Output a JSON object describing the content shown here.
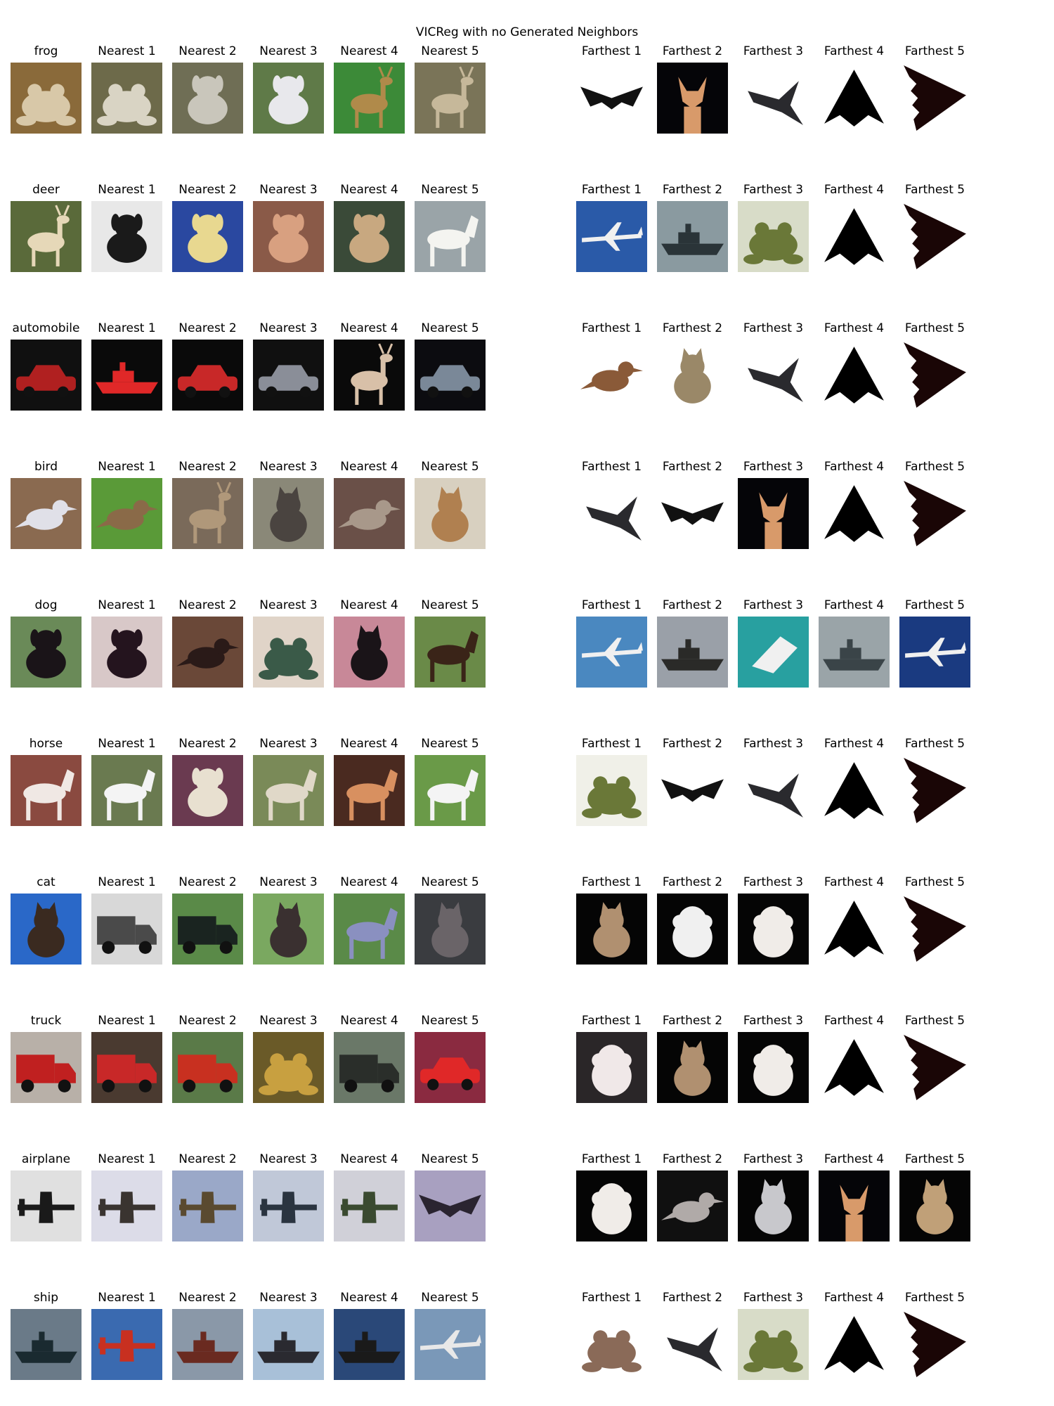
{
  "figure": {
    "title": "VICReg with no Generated Neighbors",
    "rows": [
      {
        "query": "frog",
        "nearest": [
          "Nearest 1",
          "Nearest 2",
          "Nearest 3",
          "Nearest 4",
          "Nearest 5"
        ],
        "farthest": [
          "Farthest 1",
          "Farthest 2",
          "Farthest 3",
          "Farthest 4",
          "Farthest 5"
        ],
        "query_image": {
          "icon": "frog",
          "bg": "#8a6a3a",
          "fg": "#d8c8a8"
        },
        "nearest_images": [
          {
            "icon": "frog",
            "bg": "#6d6a4a",
            "fg": "#d9d4c4"
          },
          {
            "icon": "dog",
            "bg": "#6f6e55",
            "fg": "#c9c6bb"
          },
          {
            "icon": "dog",
            "bg": "#5f7a48",
            "fg": "#e8e8ec"
          },
          {
            "icon": "deer",
            "bg": "#3c8a38",
            "fg": "#b08a4a"
          },
          {
            "icon": "deer",
            "bg": "#7a7458",
            "fg": "#c6b89a"
          }
        ],
        "farthest_images": [
          {
            "icon": "bat-plane",
            "bg": "#ffffff",
            "fg": "#111111"
          },
          {
            "icon": "chihuahua",
            "bg": "#050508",
            "fg": "#d89a6a"
          },
          {
            "icon": "jet",
            "bg": "#ffffff",
            "fg": "#2a2a2e"
          },
          {
            "icon": "triangle",
            "bg": "#ffffff",
            "fg": "#000000"
          },
          {
            "icon": "stealth",
            "bg": "#ffffff",
            "fg": "#1a0606"
          }
        ]
      },
      {
        "query": "deer",
        "nearest": [
          "Nearest 1",
          "Nearest 2",
          "Nearest 3",
          "Nearest 4",
          "Nearest 5"
        ],
        "farthest": [
          "Farthest 1",
          "Farthest 2",
          "Farthest 3",
          "Farthest 4",
          "Farthest 5"
        ],
        "query_image": {
          "icon": "deer",
          "bg": "#5a6a3a",
          "fg": "#e6d8b8"
        },
        "nearest_images": [
          {
            "icon": "dog",
            "bg": "#e8e8e8",
            "fg": "#1a1a1a"
          },
          {
            "icon": "dog",
            "bg": "#2a48a0",
            "fg": "#e8d890"
          },
          {
            "icon": "dog",
            "bg": "#8a5a48",
            "fg": "#d8a080"
          },
          {
            "icon": "dog",
            "bg": "#3a4a38",
            "fg": "#c8a880"
          },
          {
            "icon": "horse",
            "bg": "#9aa4a8",
            "fg": "#f4f4f0"
          }
        ],
        "farthest_images": [
          {
            "icon": "airliner",
            "bg": "#2a5aa8",
            "fg": "#f0f0f0"
          },
          {
            "icon": "ship",
            "bg": "#8a9aa0",
            "fg": "#2a3438"
          },
          {
            "icon": "frog",
            "bg": "#d8dcc8",
            "fg": "#6a7838"
          },
          {
            "icon": "triangle",
            "bg": "#ffffff",
            "fg": "#000000"
          },
          {
            "icon": "stealth",
            "bg": "#ffffff",
            "fg": "#1a0606"
          }
        ]
      },
      {
        "query": "automobile",
        "nearest": [
          "Nearest 1",
          "Nearest 2",
          "Nearest 3",
          "Nearest 4",
          "Nearest 5"
        ],
        "farthest": [
          "Farthest 1",
          "Farthest 2",
          "Farthest 3",
          "Farthest 4",
          "Farthest 5"
        ],
        "query_image": {
          "icon": "car",
          "bg": "#101010",
          "fg": "#b02020"
        },
        "nearest_images": [
          {
            "icon": "ship",
            "bg": "#0a0a0a",
            "fg": "#e02828"
          },
          {
            "icon": "car",
            "bg": "#0a0a0a",
            "fg": "#c82828"
          },
          {
            "icon": "car",
            "bg": "#101010",
            "fg": "#8a8e98"
          },
          {
            "icon": "deer",
            "bg": "#0a0a0a",
            "fg": "#d8c0a8"
          },
          {
            "icon": "car",
            "bg": "#0c0c10",
            "fg": "#7a8898"
          }
        ],
        "farthest_images": [
          {
            "icon": "bird",
            "bg": "#ffffff",
            "fg": "#8a5a38"
          },
          {
            "icon": "cat",
            "bg": "#ffffff",
            "fg": "#9a8868"
          },
          {
            "icon": "jet",
            "bg": "#ffffff",
            "fg": "#2a2a2e"
          },
          {
            "icon": "triangle",
            "bg": "#ffffff",
            "fg": "#000000"
          },
          {
            "icon": "stealth",
            "bg": "#ffffff",
            "fg": "#1a0606"
          }
        ]
      },
      {
        "query": "bird",
        "nearest": [
          "Nearest 1",
          "Nearest 2",
          "Nearest 3",
          "Nearest 4",
          "Nearest 5"
        ],
        "farthest": [
          "Farthest 1",
          "Farthest 2",
          "Farthest 3",
          "Farthest 4",
          "Farthest 5"
        ],
        "query_image": {
          "icon": "bird",
          "bg": "#8a6a50",
          "fg": "#e0e0e8"
        },
        "nearest_images": [
          {
            "icon": "bird",
            "bg": "#5a9a38",
            "fg": "#8a6a48"
          },
          {
            "icon": "deer",
            "bg": "#7a6a5a",
            "fg": "#b0987a"
          },
          {
            "icon": "cat",
            "bg": "#8a8878",
            "fg": "#4a4440"
          },
          {
            "icon": "bird",
            "bg": "#6a5048",
            "fg": "#a8988a"
          },
          {
            "icon": "cat",
            "bg": "#d8d0c0",
            "fg": "#b08050"
          }
        ],
        "farthest_images": [
          {
            "icon": "jet",
            "bg": "#ffffff",
            "fg": "#2a2a2e"
          },
          {
            "icon": "bat-plane",
            "bg": "#ffffff",
            "fg": "#111111"
          },
          {
            "icon": "chihuahua",
            "bg": "#050508",
            "fg": "#d89a6a"
          },
          {
            "icon": "triangle",
            "bg": "#ffffff",
            "fg": "#000000"
          },
          {
            "icon": "stealth",
            "bg": "#ffffff",
            "fg": "#1a0606"
          }
        ]
      },
      {
        "query": "dog",
        "nearest": [
          "Nearest 1",
          "Nearest 2",
          "Nearest 3",
          "Nearest 4",
          "Nearest 5"
        ],
        "farthest": [
          "Farthest 1",
          "Farthest 2",
          "Farthest 3",
          "Farthest 4",
          "Farthest 5"
        ],
        "query_image": {
          "icon": "dog",
          "bg": "#6a8a58",
          "fg": "#1a1418"
        },
        "nearest_images": [
          {
            "icon": "dog",
            "bg": "#d8c8c8",
            "fg": "#24141e"
          },
          {
            "icon": "bird",
            "bg": "#6a4838",
            "fg": "#2a1a18"
          },
          {
            "icon": "frog",
            "bg": "#e0d4c8",
            "fg": "#3a5a48"
          },
          {
            "icon": "cat",
            "bg": "#c88898",
            "fg": "#1a1418"
          },
          {
            "icon": "horse",
            "bg": "#6a8a48",
            "fg": "#3a2418"
          }
        ],
        "farthest_images": [
          {
            "icon": "airliner",
            "bg": "#4a88c0",
            "fg": "#f0f0f0"
          },
          {
            "icon": "ship",
            "bg": "#9aa0a8",
            "fg": "#2a2a28"
          },
          {
            "icon": "boat",
            "bg": "#28a0a0",
            "fg": "#f0f0f0"
          },
          {
            "icon": "ship",
            "bg": "#9aa4a8",
            "fg": "#3a4448"
          },
          {
            "icon": "airliner",
            "bg": "#1a3a80",
            "fg": "#f0f0f0"
          }
        ]
      },
      {
        "query": "horse",
        "nearest": [
          "Nearest 1",
          "Nearest 2",
          "Nearest 3",
          "Nearest 4",
          "Nearest 5"
        ],
        "farthest": [
          "Farthest 1",
          "Farthest 2",
          "Farthest 3",
          "Farthest 4",
          "Farthest 5"
        ],
        "query_image": {
          "icon": "horse",
          "bg": "#8a4a40",
          "fg": "#f0e8e4"
        },
        "nearest_images": [
          {
            "icon": "horse",
            "bg": "#6a7a50",
            "fg": "#f4f4f4"
          },
          {
            "icon": "dog",
            "bg": "#6a3a50",
            "fg": "#e8e0d0"
          },
          {
            "icon": "horse",
            "bg": "#7a8a58",
            "fg": "#e0d8c8"
          },
          {
            "icon": "horse",
            "bg": "#4a2a20",
            "fg": "#d89060"
          },
          {
            "icon": "horse",
            "bg": "#6a9a48",
            "fg": "#f4f4f4"
          }
        ],
        "farthest_images": [
          {
            "icon": "frog",
            "bg": "#f0f0e8",
            "fg": "#6a7838"
          },
          {
            "icon": "bat-plane",
            "bg": "#ffffff",
            "fg": "#111111"
          },
          {
            "icon": "jet",
            "bg": "#ffffff",
            "fg": "#2a2a2e"
          },
          {
            "icon": "triangle",
            "bg": "#ffffff",
            "fg": "#000000"
          },
          {
            "icon": "stealth",
            "bg": "#ffffff",
            "fg": "#1a0606"
          }
        ]
      },
      {
        "query": "cat",
        "nearest": [
          "Nearest 1",
          "Nearest 2",
          "Nearest 3",
          "Nearest 4",
          "Nearest 5"
        ],
        "farthest": [
          "Farthest 1",
          "Farthest 2",
          "Farthest 3",
          "Farthest 4",
          "Farthest 5"
        ],
        "query_image": {
          "icon": "cat",
          "bg": "#2a68c8",
          "fg": "#3a2a20"
        },
        "nearest_images": [
          {
            "icon": "truck",
            "bg": "#d8d8d8",
            "fg": "#4a4a4a"
          },
          {
            "icon": "truck",
            "bg": "#5a8a48",
            "fg": "#1a2420"
          },
          {
            "icon": "cat",
            "bg": "#7aa860",
            "fg": "#3a3030"
          },
          {
            "icon": "horse",
            "bg": "#5a8a48",
            "fg": "#8a90c0"
          },
          {
            "icon": "cat",
            "bg": "#3a3c40",
            "fg": "#6a6468"
          }
        ],
        "farthest_images": [
          {
            "icon": "cat",
            "bg": "#050505",
            "fg": "#b09070"
          },
          {
            "icon": "fluffy-dog",
            "bg": "#050505",
            "fg": "#f0f0f0"
          },
          {
            "icon": "fluffy-dog",
            "bg": "#050505",
            "fg": "#f0ece8"
          },
          {
            "icon": "triangle",
            "bg": "#ffffff",
            "fg": "#000000"
          },
          {
            "icon": "stealth",
            "bg": "#ffffff",
            "fg": "#1a0606"
          }
        ]
      },
      {
        "query": "truck",
        "nearest": [
          "Nearest 1",
          "Nearest 2",
          "Nearest 3",
          "Nearest 4",
          "Nearest 5"
        ],
        "farthest": [
          "Farthest 1",
          "Farthest 2",
          "Farthest 3",
          "Farthest 4",
          "Farthest 5"
        ],
        "query_image": {
          "icon": "truck",
          "bg": "#b8b0a8",
          "fg": "#c02020"
        },
        "nearest_images": [
          {
            "icon": "truck",
            "bg": "#4a3a30",
            "fg": "#c82828"
          },
          {
            "icon": "truck",
            "bg": "#5a7a48",
            "fg": "#c83020"
          },
          {
            "icon": "frog",
            "bg": "#6a5a28",
            "fg": "#c8a040"
          },
          {
            "icon": "truck",
            "bg": "#6a7868",
            "fg": "#2a2e2a"
          },
          {
            "icon": "car",
            "bg": "#8a2a40",
            "fg": "#e02828"
          }
        ],
        "farthest_images": [
          {
            "icon": "fluffy-dog",
            "bg": "#2a2628",
            "fg": "#f0e8e8"
          },
          {
            "icon": "cat",
            "bg": "#050505",
            "fg": "#b09070"
          },
          {
            "icon": "fluffy-dog",
            "bg": "#050505",
            "fg": "#f0ece8"
          },
          {
            "icon": "triangle",
            "bg": "#ffffff",
            "fg": "#000000"
          },
          {
            "icon": "stealth",
            "bg": "#ffffff",
            "fg": "#1a0606"
          }
        ]
      },
      {
        "query": "airplane",
        "nearest": [
          "Nearest 1",
          "Nearest 2",
          "Nearest 3",
          "Nearest 4",
          "Nearest 5"
        ],
        "farthest": [
          "Farthest 1",
          "Farthest 2",
          "Farthest 3",
          "Farthest 4",
          "Farthest 5"
        ],
        "query_image": {
          "icon": "prop-plane",
          "bg": "#e0e0e0",
          "fg": "#1a1a1a"
        },
        "nearest_images": [
          {
            "icon": "prop-plane",
            "bg": "#dcdce8",
            "fg": "#3a3430"
          },
          {
            "icon": "prop-plane",
            "bg": "#9aa8c8",
            "fg": "#5a4a30"
          },
          {
            "icon": "prop-plane",
            "bg": "#c0c8d8",
            "fg": "#2a3440"
          },
          {
            "icon": "prop-plane",
            "bg": "#d0d0d8",
            "fg": "#3a4a30"
          },
          {
            "icon": "bat-plane",
            "bg": "#a8a0c0",
            "fg": "#2a2430"
          }
        ],
        "farthest_images": [
          {
            "icon": "fluffy-dog",
            "bg": "#050505",
            "fg": "#f0ece8"
          },
          {
            "icon": "bird",
            "bg": "#101010",
            "fg": "#b0aaa8"
          },
          {
            "icon": "cat",
            "bg": "#050505",
            "fg": "#c8c8cc"
          },
          {
            "icon": "chihuahua",
            "bg": "#050508",
            "fg": "#d89a6a"
          },
          {
            "icon": "cat",
            "bg": "#050505",
            "fg": "#c0a078"
          }
        ]
      },
      {
        "query": "ship",
        "nearest": [
          "Nearest 1",
          "Nearest 2",
          "Nearest 3",
          "Nearest 4",
          "Nearest 5"
        ],
        "farthest": [
          "Farthest 1",
          "Farthest 2",
          "Farthest 3",
          "Farthest 4",
          "Farthest 5"
        ],
        "query_image": {
          "icon": "ship",
          "bg": "#6a7a88",
          "fg": "#1a2a30"
        },
        "nearest_images": [
          {
            "icon": "prop-plane",
            "bg": "#3a6ab0",
            "fg": "#c83020"
          },
          {
            "icon": "ship",
            "bg": "#8a98a8",
            "fg": "#6a2a20"
          },
          {
            "icon": "ship",
            "bg": "#a8c0d8",
            "fg": "#2a2a30"
          },
          {
            "icon": "ship",
            "bg": "#2a4878",
            "fg": "#1a1a1a"
          },
          {
            "icon": "airliner",
            "bg": "#7a98b8",
            "fg": "#e8e8e8"
          }
        ],
        "farthest_images": [
          {
            "icon": "frog",
            "bg": "#ffffff",
            "fg": "#8a6a58"
          },
          {
            "icon": "jet",
            "bg": "#ffffff",
            "fg": "#2a2a2e"
          },
          {
            "icon": "frog",
            "bg": "#d8dcc8",
            "fg": "#6a7838"
          },
          {
            "icon": "triangle",
            "bg": "#ffffff",
            "fg": "#000000"
          },
          {
            "icon": "stealth",
            "bg": "#ffffff",
            "fg": "#1a0606"
          }
        ]
      }
    ]
  }
}
